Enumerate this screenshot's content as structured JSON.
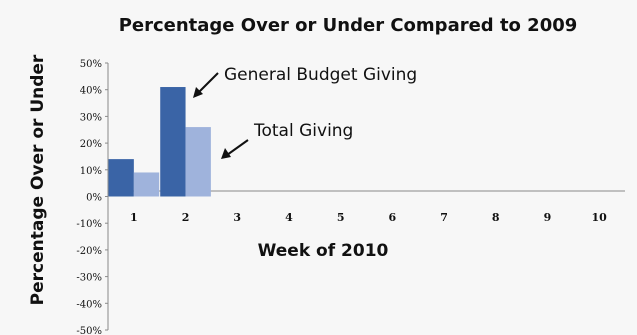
{
  "chart_data": {
    "type": "bar",
    "title": "Percentage Over or Under Compared to 2009",
    "xlabel": "Week of 2010",
    "ylabel": "Percentage Over or Under",
    "categories": [
      "1",
      "2",
      "3",
      "4",
      "5",
      "6",
      "7",
      "8",
      "9",
      "10"
    ],
    "y_ticks": [
      "50%",
      "40%",
      "30%",
      "20%",
      "10%",
      "0%",
      "-10%",
      "-20%",
      "-30%",
      "-40%",
      "-50%"
    ],
    "ylim": [
      -50,
      50
    ],
    "legend": "none",
    "grid": false,
    "series": [
      {
        "values": [
          14,
          41,
          null,
          null,
          null,
          null,
          null,
          null,
          null,
          null
        ],
        "color": "#3a64a6"
      },
      {
        "values": [
          9,
          26,
          null,
          null,
          null,
          null,
          null,
          null,
          null,
          null
        ],
        "color": "#9fb3dc"
      }
    ],
    "annotations": [
      {
        "text": "General Budget Giving",
        "points_to_series": 0,
        "points_to_category": "2"
      },
      {
        "text": "Total Giving",
        "points_to_series": 1,
        "points_to_category": "2"
      }
    ]
  }
}
